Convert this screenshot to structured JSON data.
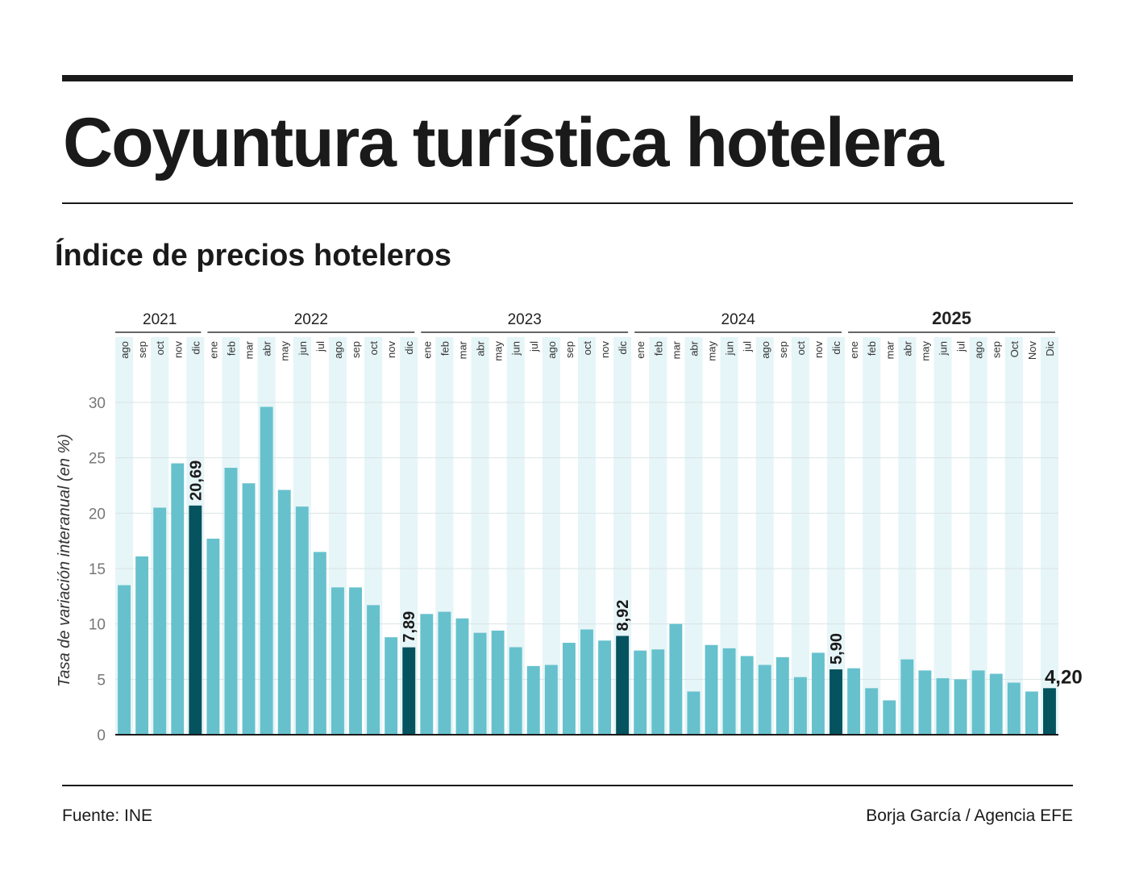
{
  "title": "Coyuntura turística hotelera",
  "subtitle": "Índice de precios hoteleros",
  "source": "Fuente: INE",
  "credit": "Borja García / Agencia EFE",
  "colors": {
    "bar": "#66c1cd",
    "highlight": "#04535f",
    "stripe": "#e6f5f7",
    "grid": "#d9e4e6"
  },
  "chart_data": {
    "type": "bar",
    "ylabel": "Tasa de variación interanual (en %)",
    "ylim": [
      0,
      30
    ],
    "yticks": [
      0,
      5,
      10,
      15,
      20,
      25,
      30
    ],
    "grid": true,
    "years": [
      {
        "label": "2021",
        "months": [
          "ago",
          "sep",
          "oct",
          "nov",
          "dic"
        ],
        "values": [
          13.5,
          16.1,
          20.5,
          24.5,
          20.69
        ]
      },
      {
        "label": "2022",
        "months": [
          "ene",
          "feb",
          "mar",
          "abr",
          "may",
          "jun",
          "jul",
          "ago",
          "sep",
          "oct",
          "nov",
          "dic"
        ],
        "values": [
          17.7,
          24.1,
          22.7,
          29.6,
          22.1,
          20.6,
          16.5,
          13.3,
          13.3,
          11.7,
          8.8,
          7.89
        ]
      },
      {
        "label": "2023",
        "months": [
          "ene",
          "feb",
          "mar",
          "abr",
          "may",
          "jun",
          "jul",
          "ago",
          "sep",
          "oct",
          "nov",
          "dic"
        ],
        "values": [
          10.9,
          11.1,
          10.5,
          9.2,
          9.4,
          7.9,
          6.2,
          6.3,
          8.3,
          9.5,
          8.5,
          8.92
        ]
      },
      {
        "label": "2024",
        "months": [
          "ene",
          "feb",
          "mar",
          "abr",
          "may",
          "jun",
          "jul",
          "ago",
          "sep",
          "oct",
          "nov",
          "dic"
        ],
        "values": [
          7.6,
          7.7,
          10.0,
          3.9,
          8.1,
          7.8,
          7.1,
          6.3,
          7.0,
          5.2,
          7.4,
          5.9
        ]
      },
      {
        "label": "2025",
        "months": [
          "ene",
          "feb",
          "mar",
          "abr",
          "may",
          "jun",
          "jul",
          "ago",
          "sep",
          "Oct",
          "Nov",
          "Dic"
        ],
        "values": [
          6.0,
          4.2,
          3.1,
          6.8,
          5.8,
          5.1,
          5.0,
          5.8,
          5.5,
          4.7,
          3.9,
          4.2
        ]
      }
    ],
    "data_labels": [
      "20,69",
      "7,89",
      "8,92",
      "5,90",
      "4,20"
    ]
  }
}
